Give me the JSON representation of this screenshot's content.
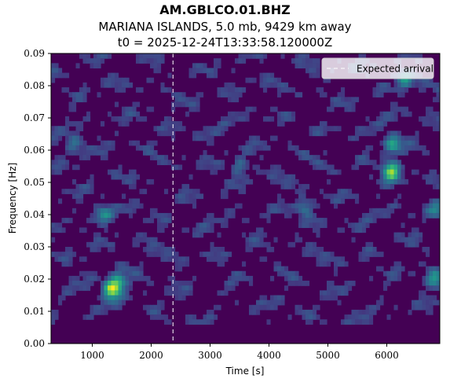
{
  "chart_data": {
    "type": "heatmap",
    "title_lines": [
      "AM.GBLCO.01.BHZ",
      "MARIANA ISLANDS, 5.0 mb, 9429 km away",
      "t0 = 2025-12-24T13:33:58.120000Z"
    ],
    "xlabel": "Time [s]",
    "ylabel": "Frequency [Hz]",
    "xlim": [
      300,
      6900
    ],
    "ylim": [
      0.0,
      0.09
    ],
    "x_ticks": [
      1000,
      2000,
      3000,
      4000,
      5000,
      6000
    ],
    "x_tick_labels": [
      "1000",
      "2000",
      "3000",
      "4000",
      "5000",
      "6000"
    ],
    "y_ticks": [
      0.0,
      0.01,
      0.02,
      0.03,
      0.04,
      0.05,
      0.06,
      0.07,
      0.08,
      0.09
    ],
    "y_tick_labels": [
      "0.00",
      "0.01",
      "0.02",
      "0.03",
      "0.04",
      "0.05",
      "0.06",
      "0.07",
      "0.08",
      "0.09"
    ],
    "colormap": "viridis",
    "expected_arrival": {
      "time": 2370,
      "label": "Expected arrival",
      "color": "#ffffff",
      "style": "dashed"
    },
    "legend": {
      "placement": "top-right",
      "entries": [
        "Expected arrival"
      ]
    },
    "hotspots": [
      {
        "time": 1330,
        "freq": 0.0167,
        "intensity": 1.0
      },
      {
        "time": 1450,
        "freq": 0.019,
        "intensity": 0.55
      },
      {
        "time": 6080,
        "freq": 0.0535,
        "intensity": 0.95
      },
      {
        "time": 6100,
        "freq": 0.062,
        "intensity": 0.6
      },
      {
        "time": 6300,
        "freq": 0.082,
        "intensity": 0.55
      },
      {
        "time": 6800,
        "freq": 0.02,
        "intensity": 0.5
      },
      {
        "time": 700,
        "freq": 0.062,
        "intensity": 0.35
      },
      {
        "time": 1200,
        "freq": 0.04,
        "intensity": 0.45
      },
      {
        "time": 4600,
        "freq": 0.042,
        "intensity": 0.35
      },
      {
        "time": 3500,
        "freq": 0.055,
        "intensity": 0.3
      },
      {
        "time": 6850,
        "freq": 0.042,
        "intensity": 0.35
      }
    ]
  }
}
